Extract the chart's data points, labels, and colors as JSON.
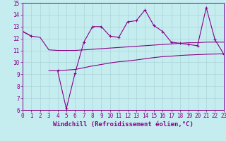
{
  "xlabel": "Windchill (Refroidissement éolien,°C)",
  "background_color": "#c5edf0",
  "line_color": "#880088",
  "grid_color": "#aad4d8",
  "x_values": [
    0,
    1,
    2,
    3,
    4,
    5,
    6,
    7,
    8,
    9,
    10,
    11,
    12,
    13,
    14,
    15,
    16,
    17,
    18,
    19,
    20,
    21,
    22,
    23
  ],
  "main_y": [
    12.6,
    12.2,
    null,
    null,
    9.3,
    6.1,
    9.1,
    11.7,
    13.0,
    13.0,
    12.2,
    12.1,
    13.4,
    13.5,
    14.4,
    13.1,
    12.6,
    11.7,
    11.6,
    11.5,
    11.4,
    14.6,
    11.9,
    10.7
  ],
  "upper_y": [
    12.6,
    12.2,
    12.1,
    11.05,
    11.0,
    11.0,
    11.0,
    11.05,
    11.1,
    11.15,
    11.2,
    11.25,
    11.3,
    11.35,
    11.4,
    11.45,
    11.5,
    11.55,
    11.6,
    11.65,
    11.65,
    11.7,
    11.7,
    11.7
  ],
  "lower_y": [
    null,
    null,
    null,
    9.3,
    9.3,
    9.35,
    9.4,
    9.55,
    9.7,
    9.82,
    9.95,
    10.05,
    10.12,
    10.2,
    10.3,
    10.4,
    10.48,
    10.52,
    10.58,
    10.62,
    10.65,
    10.68,
    10.7,
    10.72
  ],
  "ylim": [
    6,
    15
  ],
  "xlim": [
    0,
    23
  ],
  "yticks": [
    6,
    7,
    8,
    9,
    10,
    11,
    12,
    13,
    14,
    15
  ],
  "xticks": [
    0,
    1,
    2,
    3,
    4,
    5,
    6,
    7,
    8,
    9,
    10,
    11,
    12,
    13,
    14,
    15,
    16,
    17,
    18,
    19,
    20,
    21,
    22,
    23
  ],
  "xlabel_fontsize": 6.5,
  "tick_fontsize": 5.5
}
